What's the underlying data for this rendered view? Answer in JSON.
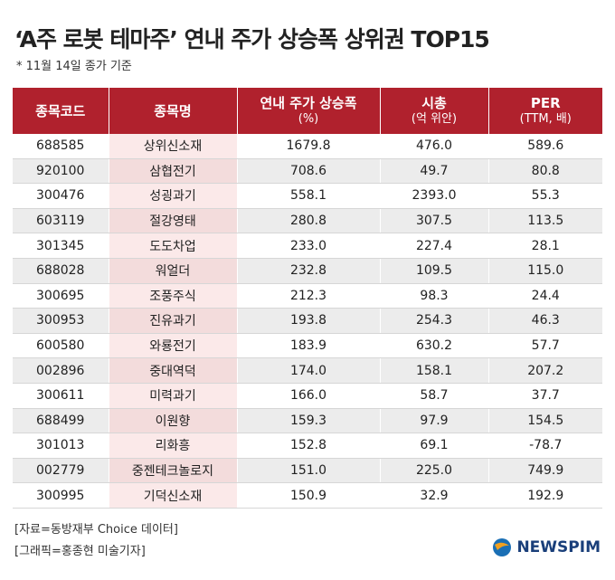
{
  "title": "‘A주 로봇 테마주’ 연내 주가 상승폭 상위권 TOP15",
  "subtitle": "* 11월 14일 종가 기준",
  "table": {
    "header": [
      {
        "label": "종목코드"
      },
      {
        "label": "종목명"
      },
      {
        "label": "연내 주가 상승폭",
        "unit": "(%)"
      },
      {
        "label": "시총",
        "unit": "(억 위안)"
      },
      {
        "label": "PER",
        "unit": "(TTM, 배)"
      }
    ],
    "rows": [
      [
        "688585",
        "상위신소재",
        "1679.8",
        "476.0",
        "589.6"
      ],
      [
        "920100",
        "삼협전기",
        "708.6",
        "49.7",
        "80.8"
      ],
      [
        "300476",
        "성굉과기",
        "558.1",
        "2393.0",
        "55.3"
      ],
      [
        "603119",
        "절강영태",
        "280.8",
        "307.5",
        "113.5"
      ],
      [
        "301345",
        "도도차업",
        "233.0",
        "227.4",
        "28.1"
      ],
      [
        "688028",
        "워얼더",
        "232.8",
        "109.5",
        "115.0"
      ],
      [
        "300695",
        "조풍주식",
        "212.3",
        "98.3",
        "24.4"
      ],
      [
        "300953",
        "진유과기",
        "193.8",
        "254.3",
        "46.3"
      ],
      [
        "600580",
        "와룡전기",
        "183.9",
        "630.2",
        "57.7"
      ],
      [
        "002896",
        "중대역덕",
        "174.0",
        "158.1",
        "207.2"
      ],
      [
        "300611",
        "미력과기",
        "166.0",
        "58.7",
        "37.7"
      ],
      [
        "688499",
        "이원향",
        "159.3",
        "97.9",
        "154.5"
      ],
      [
        "301013",
        "리화흥",
        "152.8",
        "69.1",
        "-78.7"
      ],
      [
        "002779",
        "중젠테크놀로지",
        "151.0",
        "225.0",
        "749.9"
      ],
      [
        "300995",
        "기덕신소재",
        "150.9",
        "32.9",
        "192.9"
      ]
    ]
  },
  "footer": {
    "source": "[자료=동방재부 Choice 데이터]",
    "credit": "[그래픽=홍종현 미술기자]"
  },
  "logo": "NEWSPIM"
}
